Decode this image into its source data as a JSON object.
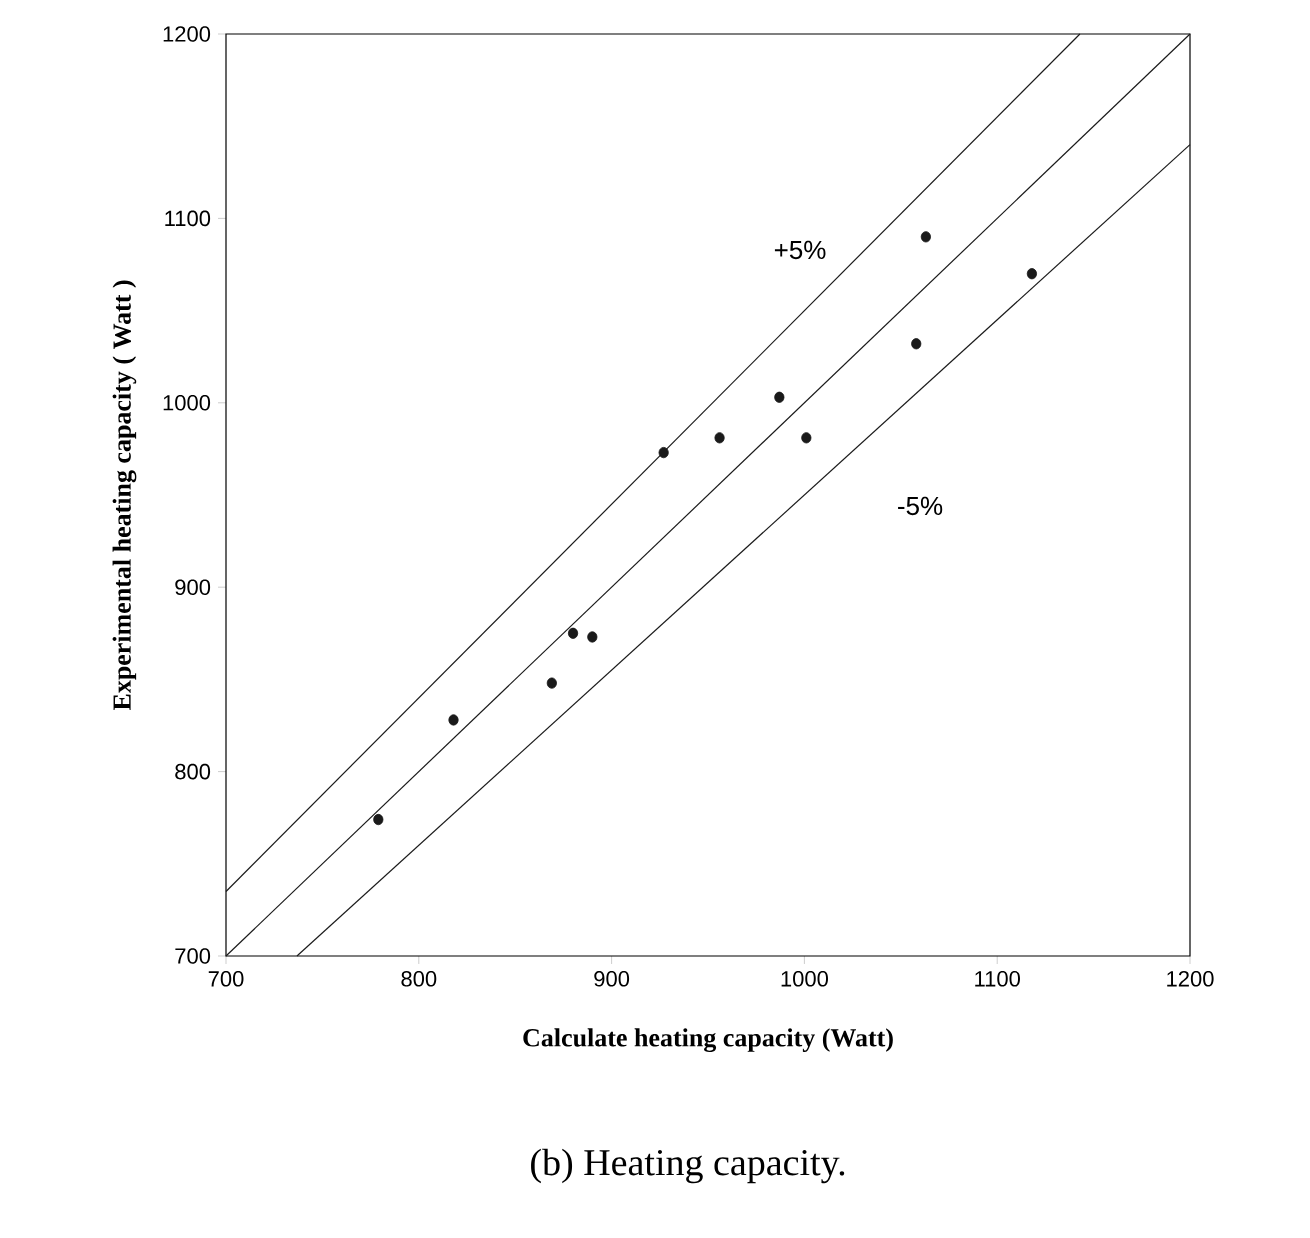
{
  "chart_data": {
    "type": "scatter",
    "xlabel": "Calculate heating capacity (Watt)",
    "ylabel": "Experimental   heating capacity ( Watt )",
    "xlim": [
      700,
      1200
    ],
    "ylim": [
      700,
      1200
    ],
    "xticks": [
      700,
      800,
      900,
      1000,
      1100,
      1200
    ],
    "yticks": [
      700,
      800,
      900,
      1000,
      1100,
      1200
    ],
    "marker": "circle",
    "series": [
      {
        "color": "#1a1a1a",
        "x": [
          779,
          818,
          869,
          880,
          890,
          927,
          956,
          987,
          1001,
          1058,
          1063,
          1118
        ],
        "values": [
          774,
          828,
          848,
          875,
          873,
          973,
          981,
          1003,
          981,
          1032,
          1090,
          1070
        ]
      },
      {
        "type": "line",
        "color": "#1a1a1a",
        "marker": "none",
        "x": [
          700,
          1200
        ],
        "values": [
          700,
          1200
        ]
      },
      {
        "type": "line",
        "color": "#1a1a1a",
        "marker": "none",
        "x": [
          700,
          1142.9
        ],
        "values": [
          735,
          1200
        ]
      },
      {
        "type": "line",
        "color": "#1a1a1a",
        "marker": "none",
        "x": [
          736.8,
          1200
        ],
        "values": [
          700,
          1140
        ]
      }
    ],
    "annotations": [
      "+5%",
      "-5%",
      "(b) Heating capacity."
    ]
  }
}
